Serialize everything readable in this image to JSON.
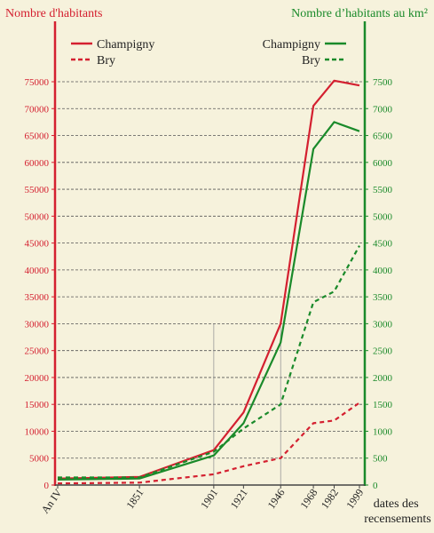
{
  "chart_data": {
    "type": "line",
    "left_axis_title": "Nombre d'habitants",
    "right_axis_title": "Nombre d’habitants au km²",
    "x_axis_title": [
      "dates des",
      "recensements"
    ],
    "x_categories": [
      "An IV",
      "1851",
      "1901",
      "1921",
      "1946",
      "1968",
      "1982",
      "1999"
    ],
    "x_years": [
      1796,
      1851,
      1901,
      1921,
      1946,
      1968,
      1982,
      1999
    ],
    "left_ylim": [
      0,
      80000
    ],
    "left_ticks": [
      "0",
      "5000",
      "10000",
      "15000",
      "20000",
      "25000",
      "30000",
      "35000",
      "40000",
      "45000",
      "50000",
      "55000",
      "60000",
      "65000",
      "70000",
      "75000"
    ],
    "right_ylim": [
      0,
      8000
    ],
    "right_ticks": [
      "0",
      "500",
      "1000",
      "1500",
      "2000",
      "2500",
      "3000",
      "3500",
      "4000",
      "4500",
      "5000",
      "5500",
      "6000",
      "6500",
      "7000",
      "7500"
    ],
    "legend_left": {
      "items": [
        "Champigny",
        "Bry"
      ]
    },
    "legend_right": {
      "items": [
        "Champigny",
        "Bry"
      ]
    },
    "colors": {
      "habitants": "#d42030",
      "density": "#1a8a2a",
      "grid": "#555555",
      "background": "#f6f2dc"
    },
    "series": [
      {
        "name": "Champigny",
        "axis": "left",
        "style": "solid",
        "color": "#d42030",
        "values": [
          1200,
          1500,
          6500,
          13500,
          30000,
          70500,
          75200,
          74300
        ]
      },
      {
        "name": "Bry",
        "axis": "left",
        "style": "dashed",
        "color": "#d42030",
        "values": [
          300,
          450,
          2000,
          3500,
          5000,
          11500,
          12000,
          15300
        ]
      },
      {
        "name": "Champigny",
        "axis": "right",
        "style": "solid",
        "color": "#1a8a2a",
        "values": [
          100,
          120,
          550,
          1150,
          2650,
          6250,
          6750,
          6580
        ]
      },
      {
        "name": "Bry",
        "axis": "right",
        "style": "dashed",
        "color": "#1a8a2a",
        "values": [
          140,
          140,
          620,
          1050,
          1500,
          3400,
          3600,
          4450
        ]
      }
    ]
  }
}
